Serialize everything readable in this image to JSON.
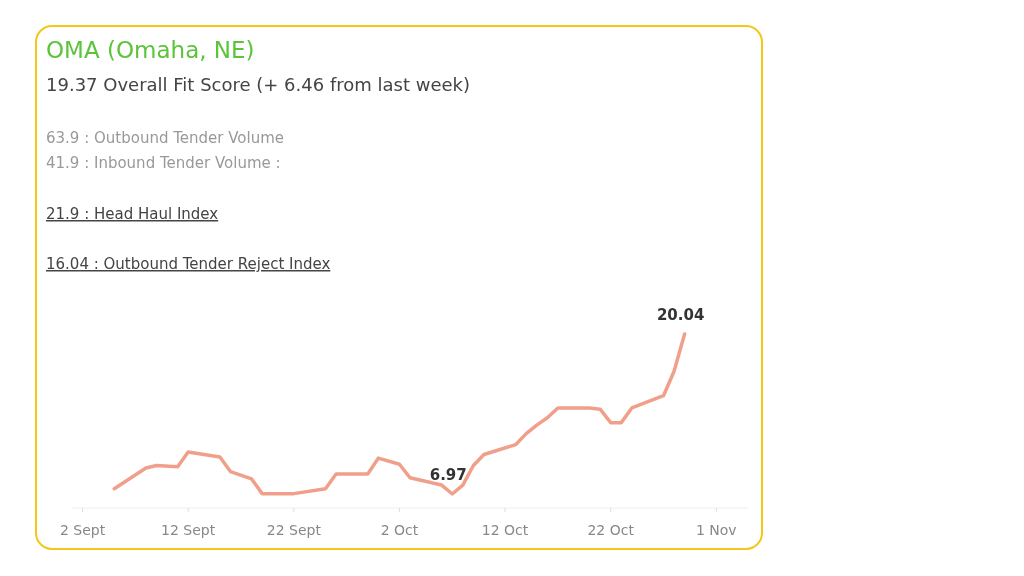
{
  "chart_data": {
    "type": "line",
    "title": "OMA (Omaha, NE)",
    "subtitle": "19.37 Overall Fit Score (+ 6.46 from last week)",
    "annotations": [
      "63.9 : Outbound Tender Volume",
      "41.9 : Inbound Tender Volume :",
      "21.9 : Head Haul Index",
      "16.04 : Outbound Tender Reject Index"
    ],
    "series": [
      {
        "color": "#f0a08a",
        "x": [
          "--09-05",
          "--09-08",
          "--09-09",
          "--09-11",
          "--09-12",
          "--09-15",
          "--09-16",
          "--09-18",
          "--09-19",
          "--09-22",
          "--09-25",
          "--09-26",
          "--09-29",
          "--09-30",
          "--10-02",
          "--10-03",
          "--10-06",
          "--10-07",
          "--10-08",
          "--10-09",
          "--10-10",
          "--10-13",
          "--10-14",
          "--10-15",
          "--10-16",
          "--10-17",
          "--10-20",
          "--10-21",
          "--10-22",
          "--10-23",
          "--10-24",
          "--10-27",
          "--10-28",
          "--10-29"
        ],
        "values": [
          7.4,
          9.1,
          9.3,
          9.2,
          10.4,
          10.0,
          8.8,
          8.2,
          7.0,
          7.0,
          7.4,
          8.6,
          8.6,
          9.9,
          9.4,
          8.3,
          7.7,
          6.97,
          7.7,
          9.3,
          10.2,
          11.0,
          11.9,
          12.6,
          13.2,
          14.0,
          14.0,
          13.9,
          12.8,
          12.8,
          14.0,
          15.0,
          17.0,
          20.04
        ],
        "value_labels": [
          null,
          null,
          null,
          null,
          null,
          null,
          null,
          null,
          null,
          null,
          null,
          null,
          null,
          null,
          null,
          null,
          null,
          "6.97",
          null,
          null,
          null,
          null,
          null,
          null,
          null,
          null,
          null,
          null,
          null,
          null,
          null,
          null,
          null,
          "20.04"
        ]
      }
    ],
    "xlim": [
      "--09-01",
      "--11-04"
    ],
    "xticks": [
      {
        "value": "--09-02",
        "label": "2 Sept"
      },
      {
        "value": "--09-12",
        "label": "12 Sept"
      },
      {
        "value": "--09-22",
        "label": "22 Sept"
      },
      {
        "value": "--10-02",
        "label": "2 Oct"
      },
      {
        "value": "--10-12",
        "label": "12 Oct"
      },
      {
        "value": "--10-22",
        "label": "22 Oct"
      },
      {
        "value": "--11-01",
        "label": "1 Nov"
      }
    ],
    "tick_labels": "x"
  }
}
